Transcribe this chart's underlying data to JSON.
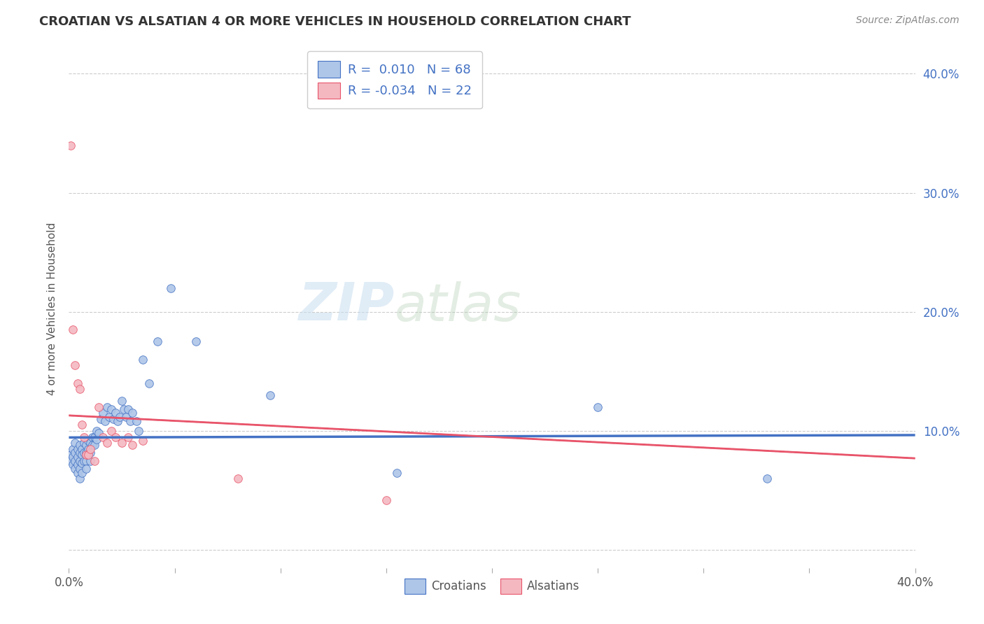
{
  "title": "CROATIAN VS ALSATIAN 4 OR MORE VEHICLES IN HOUSEHOLD CORRELATION CHART",
  "source": "Source: ZipAtlas.com",
  "ylabel": "4 or more Vehicles in Household",
  "xlim": [
    0.0,
    0.4
  ],
  "ylim": [
    -0.015,
    0.42
  ],
  "ytick_vals": [
    0.0,
    0.1,
    0.2,
    0.3,
    0.4
  ],
  "xtick_vals": [
    0.0,
    0.05,
    0.1,
    0.15,
    0.2,
    0.25,
    0.3,
    0.35,
    0.4
  ],
  "legend_r_croatian": "0.010",
  "legend_n_croatian": "68",
  "legend_r_alsatian": "-0.034",
  "legend_n_alsatian": "22",
  "croatian_color": "#aec6e8",
  "alsatian_color": "#f4b8c1",
  "trend_croatian_color": "#4472c4",
  "trend_alsatian_color": "#e8546a",
  "watermark_zip": "ZIP",
  "watermark_atlas": "atlas",
  "croatians_x": [
    0.001,
    0.001,
    0.002,
    0.002,
    0.002,
    0.003,
    0.003,
    0.003,
    0.003,
    0.004,
    0.004,
    0.004,
    0.004,
    0.005,
    0.005,
    0.005,
    0.005,
    0.005,
    0.006,
    0.006,
    0.006,
    0.006,
    0.007,
    0.007,
    0.007,
    0.008,
    0.008,
    0.008,
    0.008,
    0.009,
    0.009,
    0.01,
    0.01,
    0.01,
    0.011,
    0.011,
    0.012,
    0.012,
    0.013,
    0.013,
    0.014,
    0.015,
    0.016,
    0.017,
    0.018,
    0.019,
    0.02,
    0.021,
    0.022,
    0.023,
    0.024,
    0.025,
    0.026,
    0.027,
    0.028,
    0.029,
    0.03,
    0.032,
    0.033,
    0.035,
    0.038,
    0.042,
    0.048,
    0.06,
    0.095,
    0.155,
    0.25,
    0.33
  ],
  "croatians_y": [
    0.08,
    0.075,
    0.085,
    0.078,
    0.072,
    0.09,
    0.082,
    0.075,
    0.068,
    0.085,
    0.078,
    0.072,
    0.065,
    0.088,
    0.082,
    0.075,
    0.068,
    0.06,
    0.085,
    0.08,
    0.073,
    0.065,
    0.09,
    0.082,
    0.075,
    0.088,
    0.082,
    0.075,
    0.068,
    0.092,
    0.085,
    0.09,
    0.082,
    0.075,
    0.095,
    0.088,
    0.095,
    0.088,
    0.1,
    0.093,
    0.098,
    0.11,
    0.115,
    0.108,
    0.12,
    0.112,
    0.118,
    0.11,
    0.115,
    0.108,
    0.112,
    0.125,
    0.118,
    0.112,
    0.118,
    0.108,
    0.115,
    0.108,
    0.1,
    0.16,
    0.14,
    0.175,
    0.22,
    0.175,
    0.13,
    0.065,
    0.12,
    0.06
  ],
  "alsatians_x": [
    0.001,
    0.002,
    0.003,
    0.004,
    0.005,
    0.006,
    0.007,
    0.008,
    0.009,
    0.01,
    0.012,
    0.014,
    0.016,
    0.018,
    0.02,
    0.022,
    0.025,
    0.028,
    0.03,
    0.035,
    0.08,
    0.15
  ],
  "alsatians_y": [
    0.34,
    0.185,
    0.155,
    0.14,
    0.135,
    0.105,
    0.095,
    0.08,
    0.08,
    0.085,
    0.075,
    0.12,
    0.095,
    0.09,
    0.1,
    0.095,
    0.09,
    0.095,
    0.088,
    0.092,
    0.06,
    0.042
  ]
}
